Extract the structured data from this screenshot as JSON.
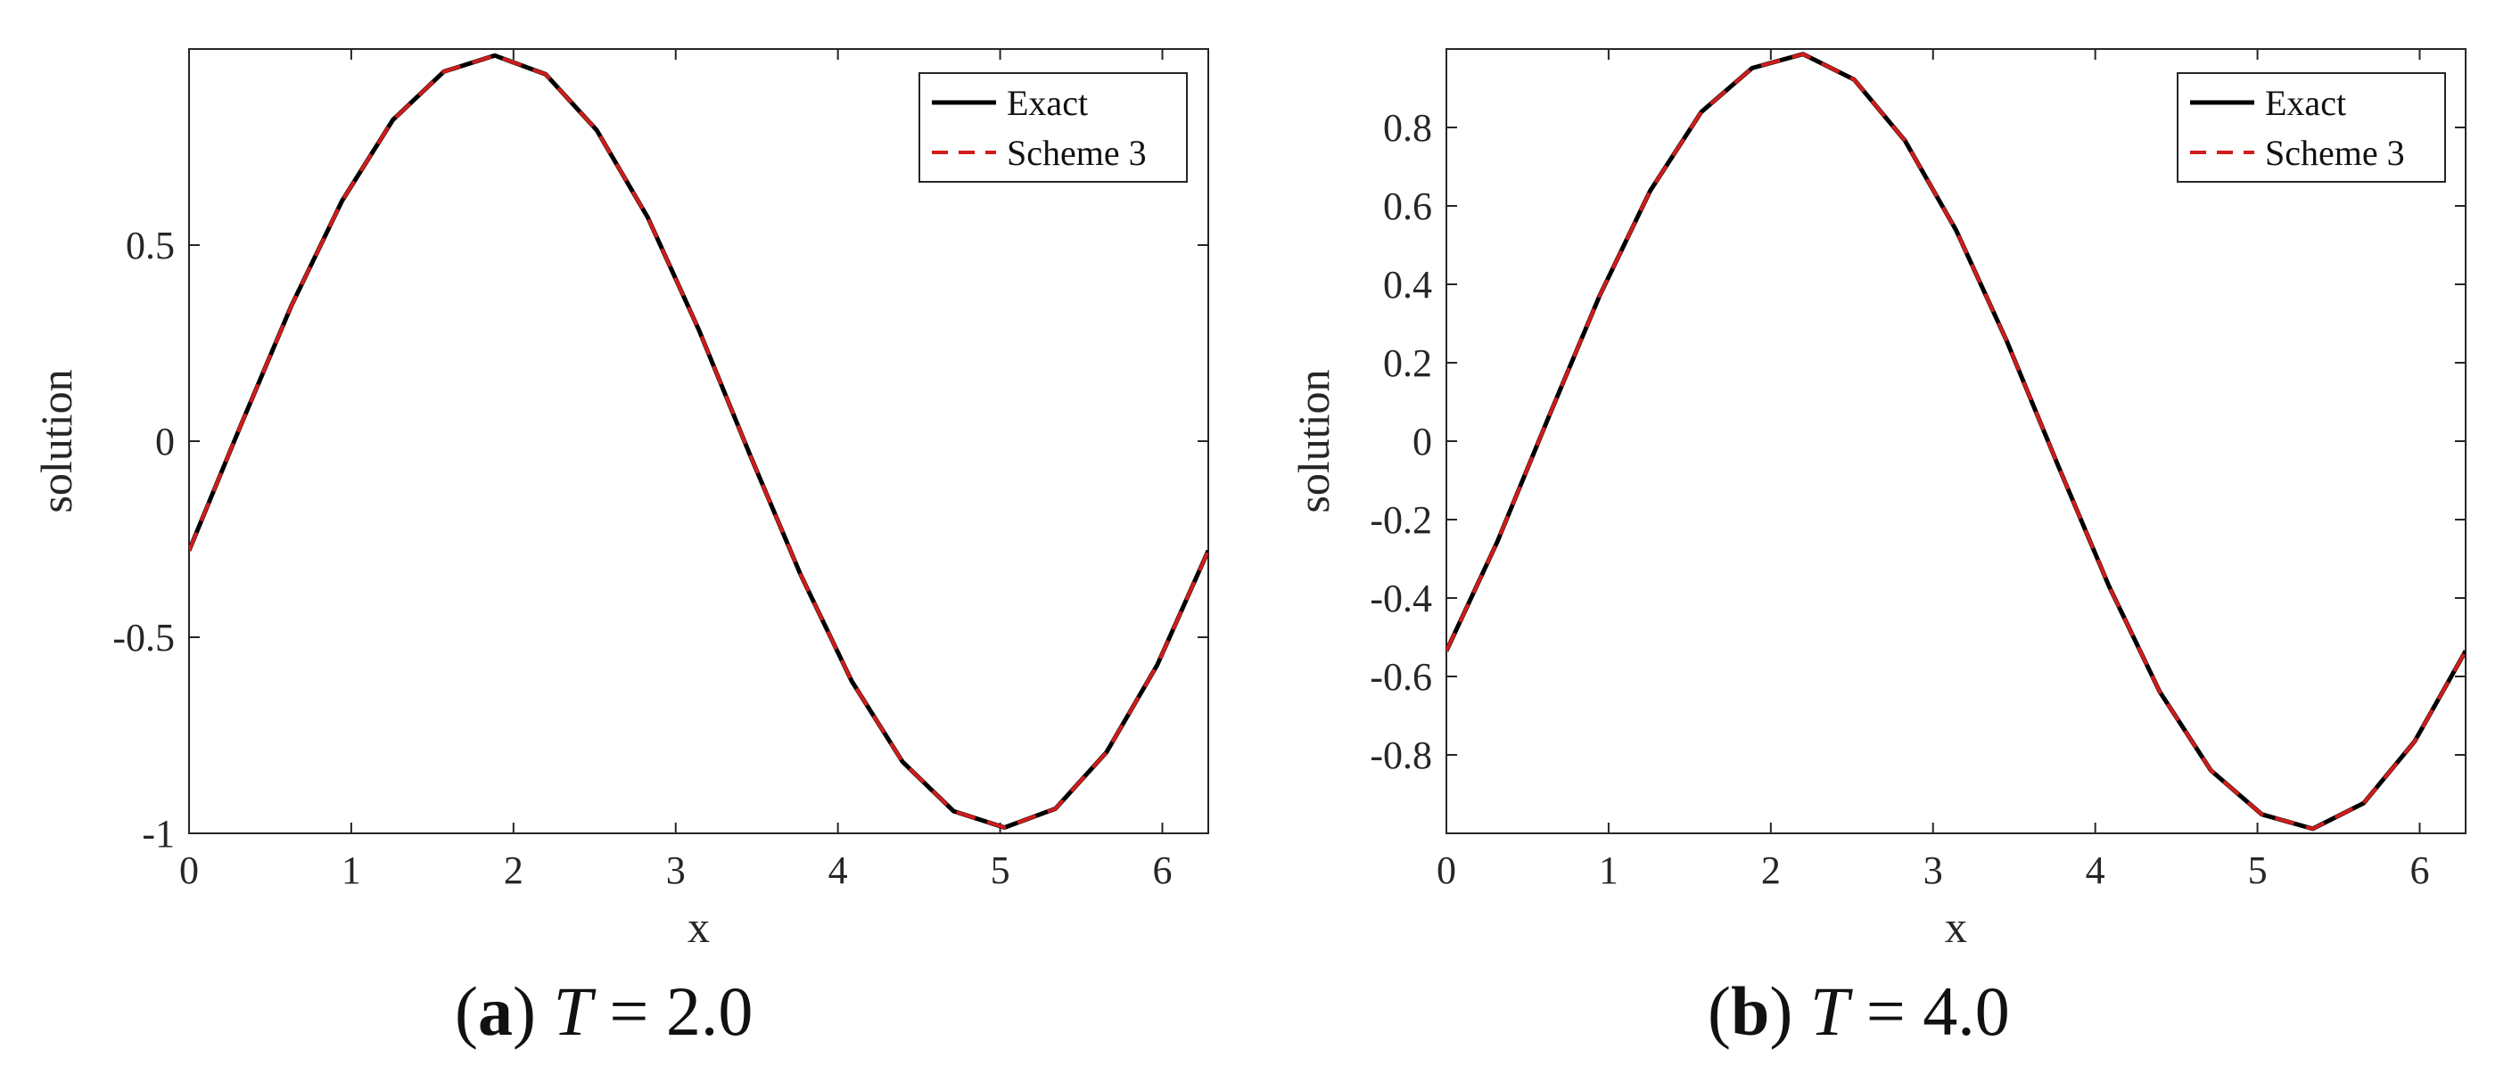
{
  "chart_data": [
    {
      "type": "line",
      "subcaption": {
        "letter": "a",
        "variable": "T",
        "equals": "=",
        "value": "2.0"
      },
      "xlabel": "x",
      "ylabel": "solution",
      "xlim": [
        0,
        6.2832
      ],
      "ylim": [
        -1,
        1
      ],
      "xticks": [
        0,
        1,
        2,
        3,
        4,
        5,
        6
      ],
      "xtick_labels": [
        "0",
        "1",
        "2",
        "3",
        "4",
        "5",
        "6"
      ],
      "yticks": [
        -1,
        -0.5,
        0,
        0.5
      ],
      "ytick_labels": [
        "-1",
        "-0.5",
        "0",
        "0.5"
      ],
      "legend_position": "top-right",
      "x": [
        0,
        0.3142,
        0.6283,
        0.9425,
        1.2566,
        1.5708,
        1.885,
        2.1991,
        2.5133,
        2.8274,
        3.1416,
        3.4558,
        3.7699,
        4.0841,
        4.3982,
        4.7124,
        5.0265,
        5.3407,
        5.6549,
        5.969,
        6.2832
      ],
      "series": [
        {
          "name": "Exact",
          "color": "#000000",
          "dash": "solid",
          "values": [
            -0.279,
            0.0359,
            0.3429,
            0.6126,
            0.8193,
            0.9425,
            0.9833,
            0.9354,
            0.7929,
            0.5711,
            0.2851,
            -0.0329,
            -0.3403,
            -0.6113,
            -0.8176,
            -0.9433,
            -0.9853,
            -0.9373,
            -0.7936,
            -0.5704,
            -0.279
          ]
        },
        {
          "name": "Scheme 3",
          "color": "#d01c1c",
          "dash": "dashed",
          "values": [
            -0.279,
            0.0359,
            0.3429,
            0.6126,
            0.8193,
            0.9425,
            0.9833,
            0.9354,
            0.7929,
            0.5711,
            0.2851,
            -0.0329,
            -0.3403,
            -0.6113,
            -0.8176,
            -0.9433,
            -0.9853,
            -0.9373,
            -0.7936,
            -0.5704,
            -0.279
          ]
        }
      ]
    },
    {
      "type": "line",
      "subcaption": {
        "letter": "b",
        "variable": "T",
        "equals": "=",
        "value": "4.0"
      },
      "xlabel": "x",
      "ylabel": "solution",
      "xlim": [
        0,
        6.2832
      ],
      "ylim": [
        -1,
        1
      ],
      "xticks": [
        0,
        1,
        2,
        3,
        4,
        5,
        6
      ],
      "xtick_labels": [
        "0",
        "1",
        "2",
        "3",
        "4",
        "5",
        "6"
      ],
      "yticks": [
        -0.8,
        -0.6,
        -0.4,
        -0.2,
        0,
        0.2,
        0.4,
        0.6,
        0.8
      ],
      "ytick_labels": [
        "-0.8",
        "-0.6",
        "-0.4",
        "-0.2",
        "0",
        "0.2",
        "0.4",
        "0.6",
        "0.8"
      ],
      "legend_position": "top-right",
      "x": [
        0,
        0.3142,
        0.6283,
        0.9425,
        1.2566,
        1.5708,
        1.885,
        2.1991,
        2.5133,
        2.8274,
        3.1416,
        3.4558,
        3.7699,
        4.0841,
        4.3982,
        4.7124,
        5.0265,
        5.3407,
        5.6549,
        5.969,
        6.2832
      ],
      "series": [
        {
          "name": "Exact",
          "color": "#000000",
          "dash": "solid",
          "values": [
            -0.535,
            -0.2562,
            0.0594,
            0.3692,
            0.6387,
            0.8394,
            0.9513,
            0.9871,
            0.9222,
            0.7662,
            0.5384,
            0.2538,
            -0.0611,
            -0.3693,
            -0.6396,
            -0.8395,
            -0.9516,
            -0.9885,
            -0.9229,
            -0.7657,
            -0.535
          ]
        },
        {
          "name": "Scheme 3",
          "color": "#d01c1c",
          "dash": "dashed",
          "values": [
            -0.535,
            -0.2562,
            0.0594,
            0.3692,
            0.6387,
            0.8394,
            0.9513,
            0.9871,
            0.9222,
            0.7662,
            0.5384,
            0.2538,
            -0.0611,
            -0.3693,
            -0.6396,
            -0.8395,
            -0.9516,
            -0.9885,
            -0.9229,
            -0.7657,
            -0.535
          ]
        }
      ]
    }
  ]
}
